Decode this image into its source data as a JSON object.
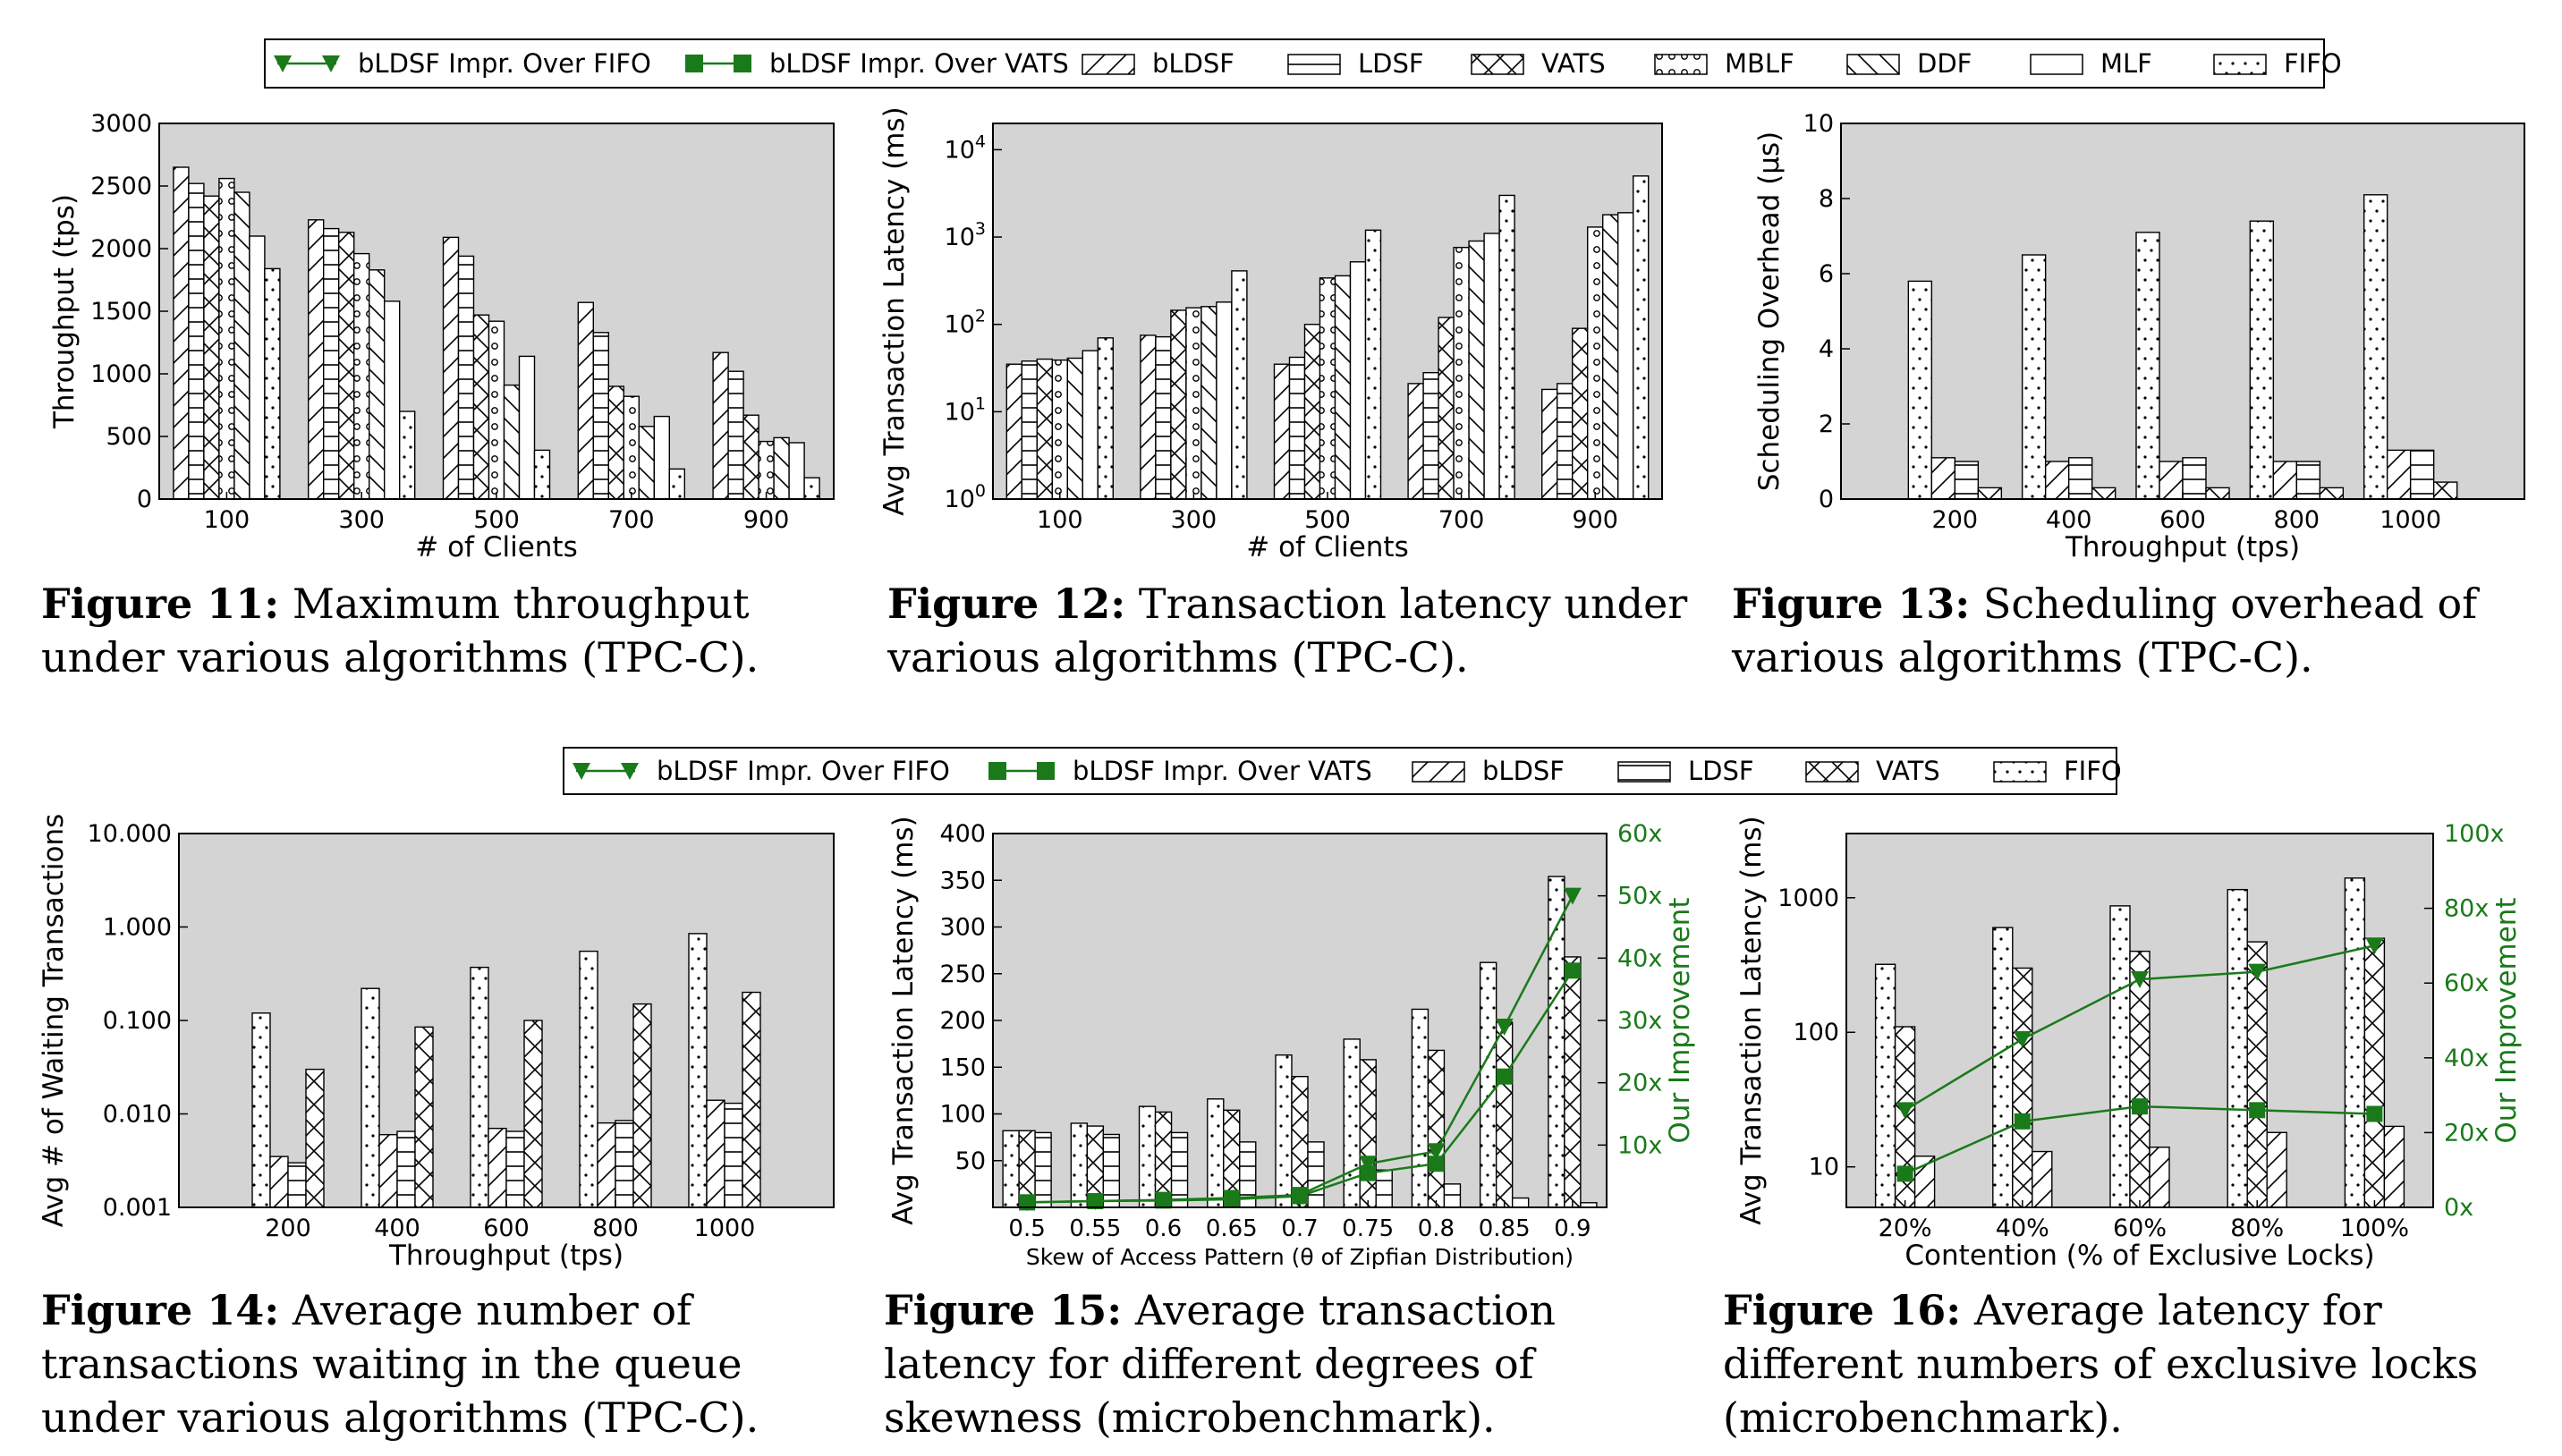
{
  "legend_top": {
    "items": [
      {
        "label": "bLDSF Impr. Over FIFO",
        "kind": "line-tri"
      },
      {
        "label": "bLDSF Impr. Over VATS",
        "kind": "line-sq"
      },
      {
        "label": "bLDSF",
        "kind": "bar",
        "pattern": "diag"
      },
      {
        "label": "LDSF",
        "kind": "bar",
        "pattern": "hlines"
      },
      {
        "label": "VATS",
        "kind": "bar",
        "pattern": "cross"
      },
      {
        "label": "MBLF",
        "kind": "bar",
        "pattern": "circles"
      },
      {
        "label": "DDF",
        "kind": "bar",
        "pattern": "rdiag"
      },
      {
        "label": "MLF",
        "kind": "bar",
        "pattern": "blank"
      },
      {
        "label": "FIFO",
        "kind": "bar",
        "pattern": "dots"
      }
    ]
  },
  "legend_bottom": {
    "items": [
      {
        "label": "bLDSF Impr. Over FIFO",
        "kind": "line-tri"
      },
      {
        "label": "bLDSF Impr. Over VATS",
        "kind": "line-sq"
      },
      {
        "label": "bLDSF",
        "kind": "bar",
        "pattern": "diag"
      },
      {
        "label": "LDSF",
        "kind": "bar",
        "pattern": "hlines"
      },
      {
        "label": "VATS",
        "kind": "bar",
        "pattern": "cross"
      },
      {
        "label": "FIFO",
        "kind": "bar",
        "pattern": "dots"
      }
    ]
  },
  "colors": {
    "plot_bg": "#d4d4d4",
    "improvement": "#1a7a1a",
    "bar_fill": "#ffffff"
  },
  "captions": [
    {
      "fig": "Figure 11:",
      "text": "Maximum throughput under various algorithms (TPC-C)."
    },
    {
      "fig": "Figure 12:",
      "text": "Transaction latency under various algorithms (TPC-C)."
    },
    {
      "fig": "Figure 13:",
      "text": "Scheduling overhead of various algorithms (TPC-C)."
    },
    {
      "fig": "Figure 14:",
      "text": "Average number of transactions waiting in the queue under various algorithms (TPC-C)."
    },
    {
      "fig": "Figure 15:",
      "text": "Average transaction latency for different degrees of skewness (microbenchmark)."
    },
    {
      "fig": "Figure 16:",
      "text": "Average latency for different numbers of exclusive locks (microbenchmark)."
    }
  ],
  "chart_data": [
    {
      "id": "fig11",
      "type": "bar",
      "xlabel": "# of Clients",
      "ylabel": "Throughput (tps)",
      "ylim": [
        0,
        3000
      ],
      "yticks": [
        "0",
        "500",
        "1000",
        "1500",
        "2000",
        "2500",
        "3000"
      ],
      "categories": [
        "100",
        "300",
        "500",
        "700",
        "900"
      ],
      "series": [
        {
          "name": "bLDSF",
          "values": [
            2650,
            2230,
            2090,
            1570,
            1170
          ]
        },
        {
          "name": "LDSF",
          "values": [
            2520,
            2160,
            1940,
            1330,
            1020
          ]
        },
        {
          "name": "VATS",
          "values": [
            2420,
            2130,
            1470,
            900,
            670
          ]
        },
        {
          "name": "MBLF",
          "values": [
            2560,
            1960,
            1420,
            820,
            460
          ]
        },
        {
          "name": "DDF",
          "values": [
            2450,
            1830,
            910,
            580,
            490
          ]
        },
        {
          "name": "MLF",
          "values": [
            2100,
            1580,
            1140,
            660,
            450
          ]
        },
        {
          "name": "FIFO",
          "values": [
            1840,
            700,
            390,
            240,
            170
          ]
        }
      ]
    },
    {
      "id": "fig12",
      "type": "bar",
      "yscale": "log",
      "xlabel": "# of Clients",
      "ylabel": "Avg Transaction Latency (ms)",
      "ylim": [
        1,
        20000
      ],
      "categories": [
        "100",
        "300",
        "500",
        "700",
        "900"
      ],
      "series": [
        {
          "name": "bLDSF",
          "values": [
            35,
            75,
            35,
            21,
            18
          ]
        },
        {
          "name": "LDSF",
          "values": [
            38,
            72,
            42,
            28,
            21
          ]
        },
        {
          "name": "VATS",
          "values": [
            40,
            145,
            100,
            120,
            90
          ]
        },
        {
          "name": "MBLF",
          "values": [
            39,
            155,
            340,
            760,
            1300
          ]
        },
        {
          "name": "DDF",
          "values": [
            41,
            160,
            360,
            900,
            1800
          ]
        },
        {
          "name": "MLF",
          "values": [
            50,
            180,
            520,
            1100,
            1900
          ]
        },
        {
          "name": "FIFO",
          "values": [
            70,
            410,
            1200,
            3000,
            5000
          ]
        }
      ]
    },
    {
      "id": "fig13",
      "type": "bar",
      "xlabel": "Throughput (tps)",
      "ylabel": "Scheduling Overhead (μs)",
      "ylim": [
        0,
        10
      ],
      "yticks": [
        "0",
        "2",
        "4",
        "6",
        "8",
        "10"
      ],
      "categories": [
        "200",
        "400",
        "600",
        "800",
        "1000"
      ],
      "series": [
        {
          "name": "FIFO",
          "values": [
            5.8,
            6.5,
            7.1,
            7.4,
            8.1
          ]
        },
        {
          "name": "bLDSF",
          "values": [
            1.1,
            1.0,
            1.0,
            1.0,
            1.3
          ]
        },
        {
          "name": "LDSF",
          "values": [
            1.0,
            1.1,
            1.1,
            1.0,
            1.3
          ]
        },
        {
          "name": "VATS",
          "values": [
            0.3,
            0.3,
            0.3,
            0.3,
            0.45
          ]
        }
      ]
    },
    {
      "id": "fig14",
      "type": "bar",
      "yscale": "log",
      "xlabel": "Throughput (tps)",
      "ylabel": "Avg # of Waiting Transactions",
      "ylim": [
        0.001,
        10
      ],
      "yticks": [
        "0.001",
        "0.010",
        "0.100",
        "1.000",
        "10.000"
      ],
      "categories": [
        "200",
        "400",
        "600",
        "800",
        "1000"
      ],
      "series": [
        {
          "name": "FIFO",
          "values": [
            0.12,
            0.22,
            0.37,
            0.55,
            0.85
          ]
        },
        {
          "name": "bLDSF",
          "values": [
            0.0035,
            0.006,
            0.007,
            0.008,
            0.014
          ]
        },
        {
          "name": "LDSF",
          "values": [
            0.003,
            0.0065,
            0.0065,
            0.0085,
            0.013
          ]
        },
        {
          "name": "VATS",
          "values": [
            0.03,
            0.085,
            0.1,
            0.15,
            0.2
          ]
        }
      ]
    },
    {
      "id": "fig15",
      "type": "bar+line",
      "xlabel": "Skew of Access Pattern (θ of Zipfian Distribution)",
      "ylabel": "Avg Transaction Latency (ms)",
      "y2label": "Our Improvement",
      "ylim": [
        0,
        400
      ],
      "yticks": [
        "50",
        "100",
        "150",
        "200",
        "250",
        "300",
        "350",
        "400"
      ],
      "y2lim": [
        0,
        60
      ],
      "y2ticks": [
        "10x",
        "20x",
        "30x",
        "40x",
        "50x",
        "60x"
      ],
      "categories": [
        "0.5",
        "0.55",
        "0.6",
        "0.65",
        "0.7",
        "0.75",
        "0.8",
        "0.85",
        "0.9"
      ],
      "series": [
        {
          "name": "FIFO",
          "values": [
            82,
            90,
            108,
            116,
            163,
            180,
            212,
            262,
            354
          ]
        },
        {
          "name": "VATS",
          "values": [
            82,
            87,
            102,
            104,
            140,
            158,
            168,
            198,
            268
          ]
        },
        {
          "name": "LDSF",
          "values": [
            80,
            78,
            80,
            70,
            70,
            40,
            25,
            10,
            5
          ]
        }
      ],
      "lines": [
        {
          "name": "bLDSF Impr. Over FIFO",
          "values": [
            0.8,
            1.0,
            1.2,
            1.5,
            2.0,
            7.0,
            9.0,
            29.0,
            50.0
          ]
        },
        {
          "name": "bLDSF Impr. Over VATS",
          "values": [
            0.8,
            1.0,
            1.1,
            1.3,
            1.8,
            5.5,
            7.0,
            21.0,
            38.0
          ]
        }
      ]
    },
    {
      "id": "fig16",
      "type": "bar+line",
      "yscale": "log",
      "xlabel": "Contention (% of Exclusive Locks)",
      "ylabel": "Avg Transaction Latency (ms)",
      "y2label": "Our Improvement",
      "ylim": [
        5,
        3000
      ],
      "yticks": [
        "10",
        "100",
        "1000"
      ],
      "y2lim": [
        0,
        100
      ],
      "y2ticks": [
        "0x",
        "20x",
        "40x",
        "60x",
        "80x",
        "100x"
      ],
      "categories": [
        "20%",
        "40%",
        "60%",
        "80%",
        "100%"
      ],
      "series": [
        {
          "name": "FIFO",
          "values": [
            320,
            600,
            870,
            1150,
            1400
          ]
        },
        {
          "name": "VATS",
          "values": [
            110,
            300,
            400,
            470,
            500
          ]
        },
        {
          "name": "bLDSF",
          "values": [
            12,
            13,
            14,
            18,
            20
          ]
        }
      ],
      "lines": [
        {
          "name": "bLDSF Impr. Over FIFO",
          "values": [
            26,
            45,
            61,
            63,
            70
          ]
        },
        {
          "name": "bLDSF Impr. Over VATS",
          "values": [
            9,
            23,
            27,
            26,
            25
          ]
        }
      ]
    }
  ]
}
